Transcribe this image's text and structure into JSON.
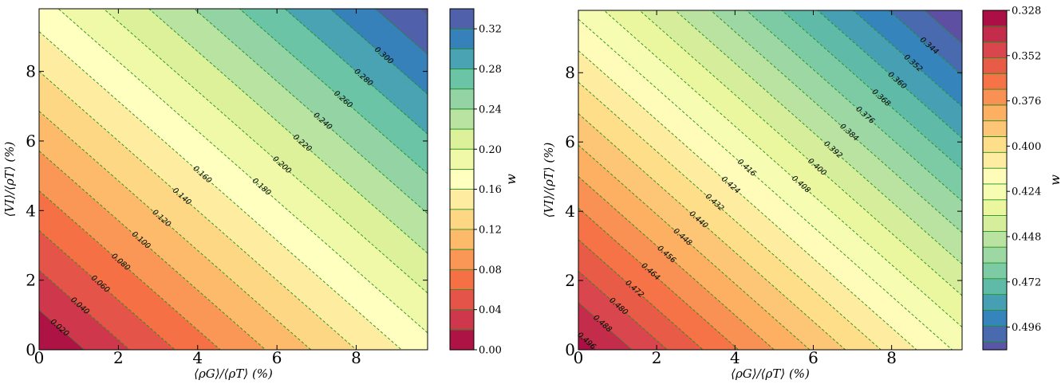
{
  "chart_data": [
    {
      "type": "heatmap",
      "subtype": "filled-contour",
      "xlabel": "⟨ρG⟩/⟨ρT⟩ (%)",
      "ylabel": "⟨VI⟩/⟨ρT⟩ (%)",
      "xlim": [
        0,
        9.8
      ],
      "ylim": [
        0,
        9.8
      ],
      "xticks": [
        "0",
        "2",
        "4",
        "6",
        "8"
      ],
      "yticks": [
        "0",
        "2",
        "4",
        "6",
        "8"
      ],
      "colormap": "Spectral",
      "colorbar": {
        "label": "w",
        "range": [
          0.0,
          0.34
        ],
        "levels": [
          0.0,
          0.02,
          0.04,
          0.06,
          0.08,
          0.1,
          0.12,
          0.14,
          0.16,
          0.18,
          0.2,
          0.22,
          0.24,
          0.26,
          0.28,
          0.3,
          0.32,
          0.34
        ],
        "ticks": [
          "0.00",
          "0.04",
          "0.08",
          "0.12",
          "0.16",
          "0.20",
          "0.24",
          "0.28",
          "0.32"
        ]
      },
      "contour_lines": {
        "style": "dashed",
        "color": "#1f8f1f",
        "labels": [
          "0.020",
          "0.040",
          "0.060",
          "0.080",
          "0.100",
          "0.120",
          "0.140",
          "0.160",
          "0.180",
          "0.200",
          "0.220",
          "0.240",
          "0.260",
          "0.280",
          "0.300"
        ]
      },
      "grid": false
    },
    {
      "type": "heatmap",
      "subtype": "filled-contour",
      "xlabel": "⟨ρG⟩/⟨ρT⟩ (%)",
      "ylabel": "⟨VI⟩/⟨ρT⟩ (%)",
      "xlim": [
        0,
        9.8
      ],
      "ylim": [
        0,
        9.8
      ],
      "xticks": [
        "0",
        "2",
        "4",
        "6",
        "8"
      ],
      "yticks": [
        "0",
        "2",
        "4",
        "6",
        "8"
      ],
      "colormap": "Spectral",
      "colorbar": {
        "label": "w",
        "range": [
          0.332,
          0.504
        ],
        "levels": [
          0.336,
          0.344,
          0.352,
          0.36,
          0.368,
          0.376,
          0.384,
          0.392,
          0.4,
          0.408,
          0.416,
          0.424,
          0.432,
          0.44,
          0.448,
          0.456,
          0.464,
          0.472,
          0.48,
          0.488,
          0.496
        ],
        "ticks": [
          "0.328",
          "0.352",
          "0.376",
          "0.400",
          "0.424",
          "0.448",
          "0.472",
          "0.496"
        ]
      },
      "contour_lines": {
        "style": "dashed",
        "color": "#1f8f1f",
        "labels": [
          "0.344",
          "0.352",
          "0.360",
          "0.368",
          "0.376",
          "0.384",
          "0.392",
          "0.400",
          "0.408",
          "0.416",
          "0.424",
          "0.432",
          "0.440",
          "0.448",
          "0.456",
          "0.464",
          "0.472",
          "0.480",
          "0.488",
          "0.496"
        ]
      },
      "grid": false
    }
  ]
}
